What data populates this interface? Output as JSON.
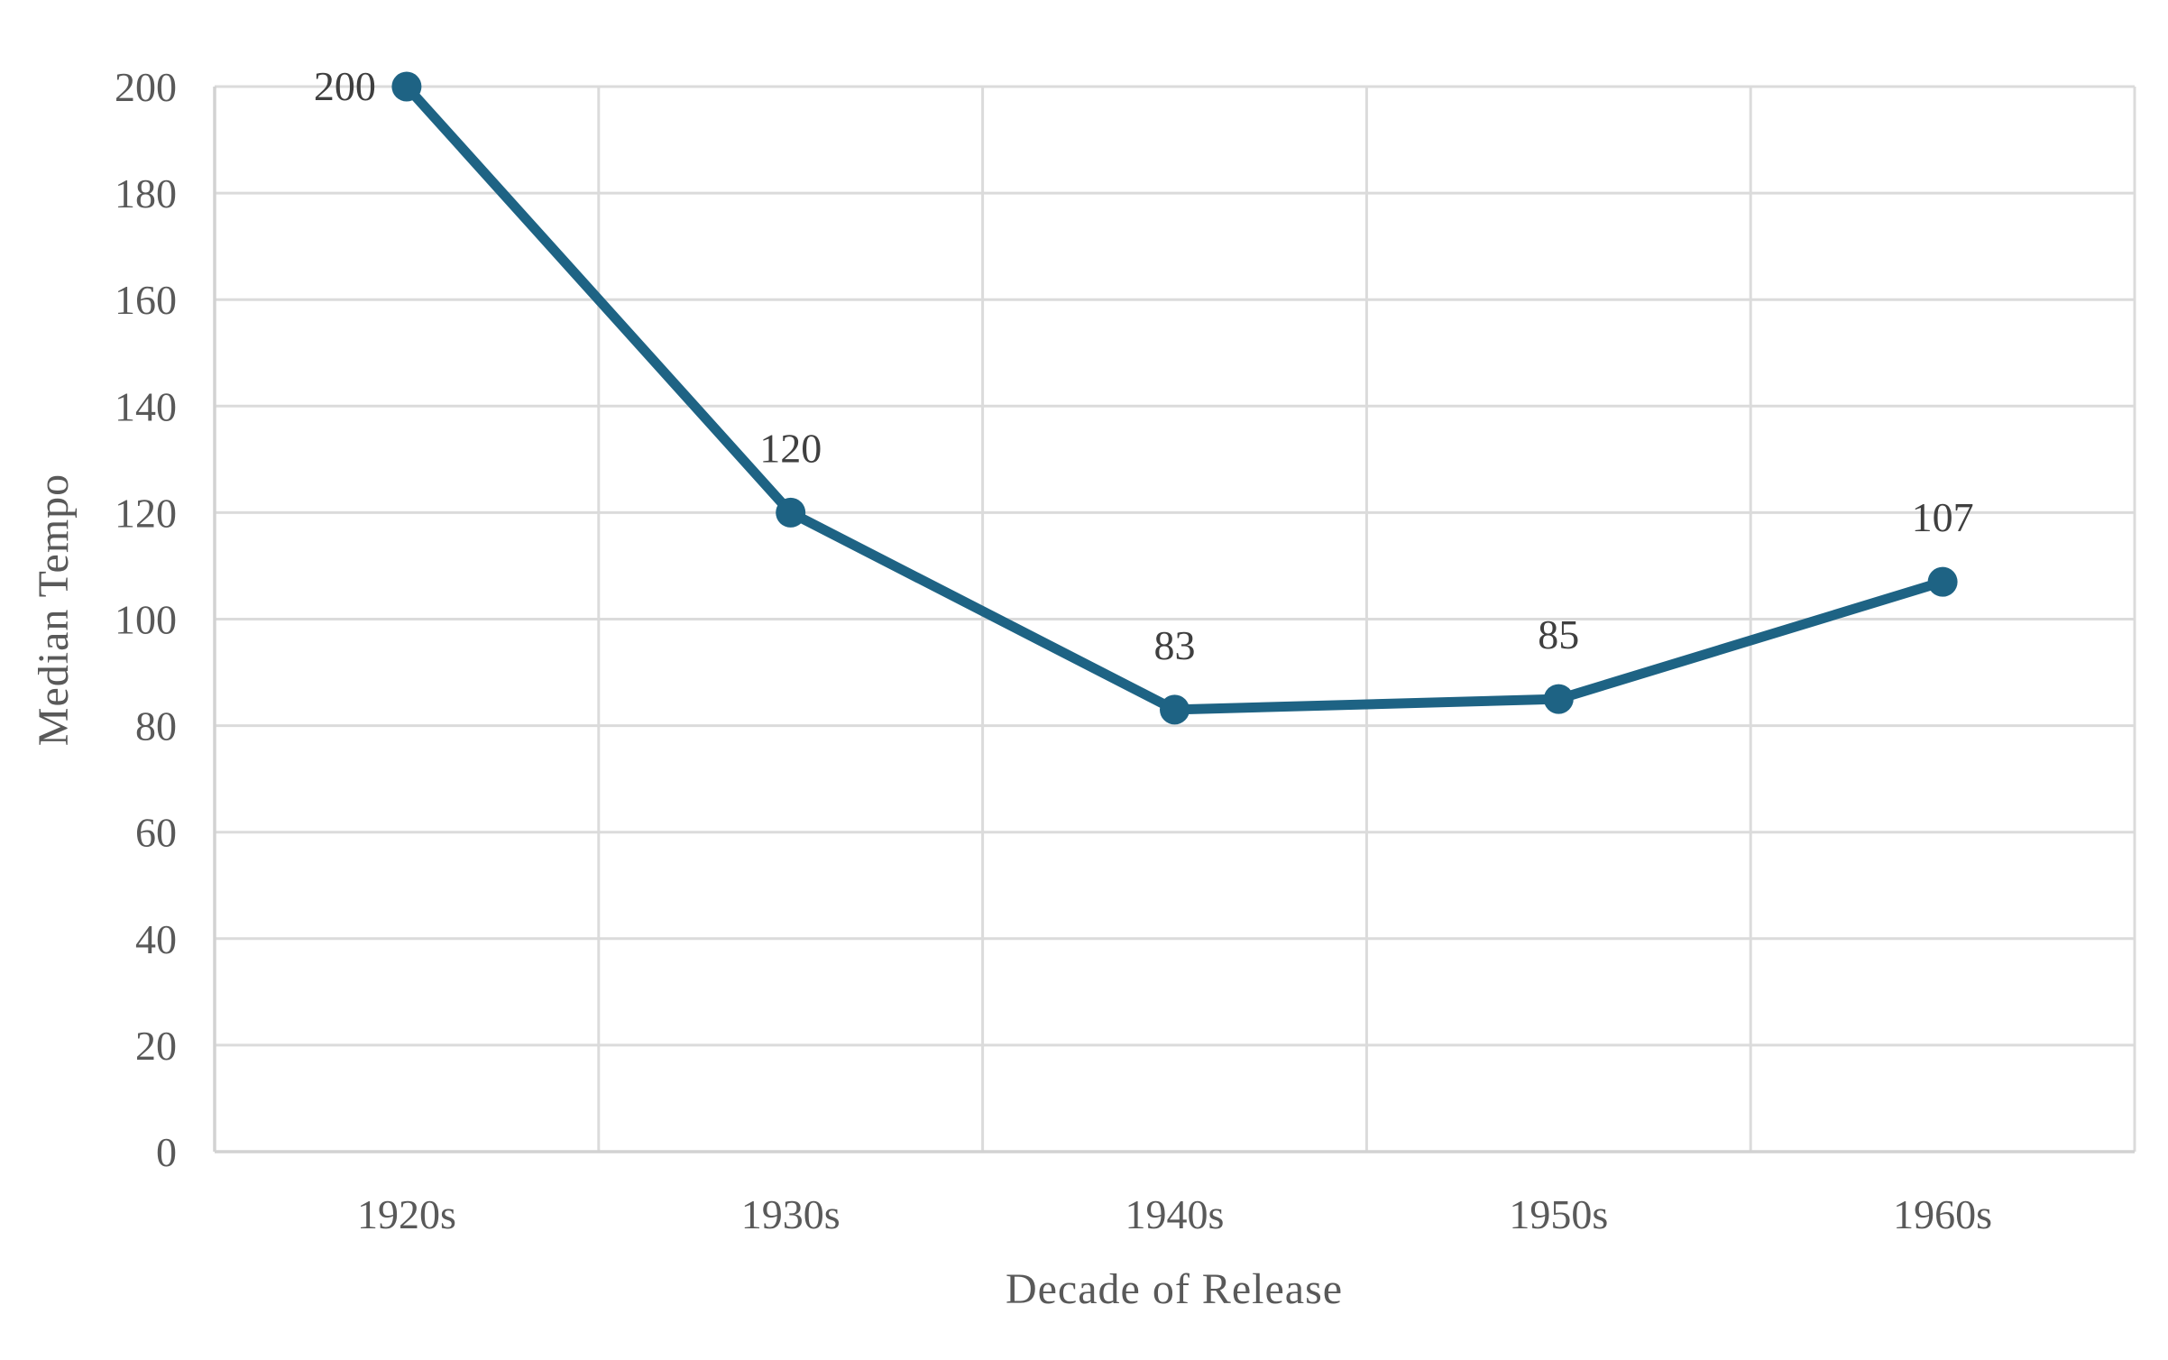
{
  "chart_data": {
    "type": "line",
    "title": "",
    "xlabel": "Decade of Release",
    "ylabel": "Median Tempo",
    "categories": [
      "1920s",
      "1930s",
      "1940s",
      "1950s",
      "1960s"
    ],
    "series": [
      {
        "name": "Median Tempo",
        "values": [
          200,
          120,
          83,
          85,
          107
        ]
      }
    ],
    "data_labels": [
      "200",
      "120",
      "83",
      "85",
      "107"
    ],
    "data_label_positions": [
      "left",
      "above",
      "above",
      "above",
      "above"
    ],
    "ylim": [
      0,
      200
    ],
    "ytick_interval": 20,
    "yticks": [
      0,
      20,
      40,
      60,
      80,
      100,
      120,
      140,
      160,
      180,
      200
    ],
    "grid": "horizontal-and-vertical",
    "legend": "none",
    "colors": {
      "line": "#1E6384",
      "marker": "#1E6384",
      "gridline": "#DBDBDB",
      "axis_line": "#D2D2D2",
      "tick_label": "#595959",
      "data_label": "#3F3F3F",
      "background": "#FFFFFF"
    }
  }
}
